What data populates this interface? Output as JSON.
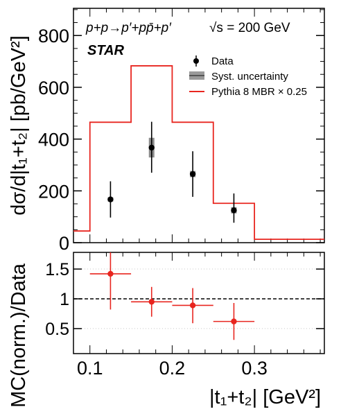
{
  "chart_data": [
    {
      "type": "step-histogram",
      "ylabel": "dσ/d|t₁+t₂| [pb/GeV²]",
      "ylim": [
        0,
        905
      ],
      "xlim": [
        0.08,
        0.385
      ],
      "y_ticks": [
        0,
        200,
        400,
        600,
        800
      ],
      "y_tick_labels": [
        "0",
        "200",
        "400",
        "600",
        "800"
      ],
      "annotations": {
        "process": "p+p→p′+pp̄+p′",
        "energy": "√s = 200 GeV",
        "experiment": "STAR"
      },
      "legend": {
        "position": "top-right",
        "entries": [
          "Data",
          "Syst. uncertainty",
          "Pythia 8 MBR × 0.25"
        ]
      },
      "colors": {
        "data": "#000000",
        "mc": "#e8251f",
        "syst": "#808080"
      },
      "series": [
        {
          "name": "Data",
          "kind": "points",
          "points": [
            {
              "x": 0.125,
              "y": 167,
              "y_err_low": 70,
              "y_err_high": 70,
              "syst": 8
            },
            {
              "x": 0.175,
              "y": 367,
              "y_err_low": 97,
              "y_err_high": 100,
              "syst": 38
            },
            {
              "x": 0.225,
              "y": 265,
              "y_err_low": 88,
              "y_err_high": 88,
              "syst": 12
            },
            {
              "x": 0.275,
              "y": 125,
              "y_err_low": 48,
              "y_err_high": 65,
              "syst": 12
            }
          ]
        },
        {
          "name": "Pythia 8 MBR × 0.25",
          "kind": "step",
          "bins": [
            {
              "x0": 0.08,
              "x1": 0.1,
              "y": 45
            },
            {
              "x0": 0.1,
              "x1": 0.15,
              "y": 465
            },
            {
              "x0": 0.15,
              "x1": 0.2,
              "y": 683
            },
            {
              "x0": 0.2,
              "x1": 0.25,
              "y": 465
            },
            {
              "x0": 0.25,
              "x1": 0.3,
              "y": 152
            },
            {
              "x0": 0.3,
              "x1": 0.385,
              "y": 13
            }
          ]
        }
      ]
    },
    {
      "type": "ratio",
      "xlabel": "|t₁+t₂| [GeV²]",
      "ylabel": "MC(norm.)/Data",
      "xlim": [
        0.08,
        0.385
      ],
      "ylim": [
        0.08,
        1.78
      ],
      "x_ticks": [
        0.1,
        0.2,
        0.3
      ],
      "x_tick_labels": [
        "0.1",
        "0.2",
        "0.3"
      ],
      "y_ticks": [
        0.5,
        1,
        1.5
      ],
      "y_tick_labels": [
        "0.5",
        "1",
        "1.5"
      ],
      "reference_line": 1,
      "grid": "horizontal dotted",
      "points": [
        {
          "x": 0.125,
          "x_half_width": 0.025,
          "y": 1.42,
          "y_err_low": 0.6,
          "y_err_high": 0.36
        },
        {
          "x": 0.175,
          "x_half_width": 0.025,
          "y": 0.95,
          "y_err_low": 0.25,
          "y_err_high": 0.25
        },
        {
          "x": 0.225,
          "x_half_width": 0.025,
          "y": 0.89,
          "y_err_low": 0.3,
          "y_err_high": 0.29
        },
        {
          "x": 0.275,
          "x_half_width": 0.025,
          "y": 0.62,
          "y_err_low": 0.31,
          "y_err_high": 0.31
        }
      ]
    }
  ]
}
